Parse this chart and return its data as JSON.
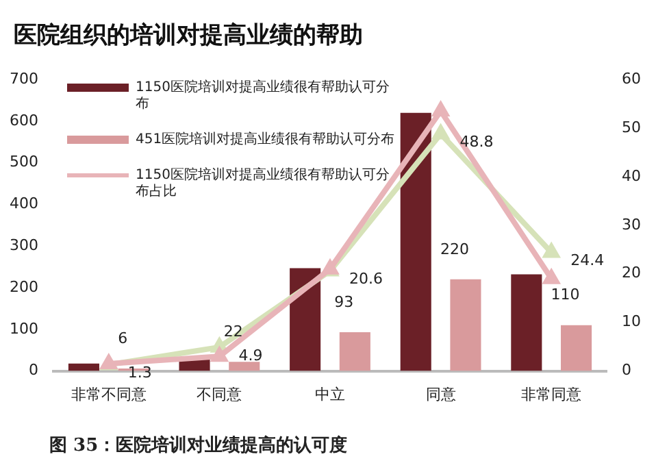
{
  "chart_data": {
    "type": "bar",
    "title": "医院组织的培训对提高业绩的帮助",
    "categories": [
      "非常不同意",
      "不同意",
      "中立",
      "同意",
      "非常同意"
    ],
    "series": [
      {
        "name": "1150医院培训对提高业绩很有帮助认可分布",
        "color": "#6b2027",
        "values": [
          18,
          33,
          247,
          620,
          232
        ]
      },
      {
        "name": "451医院培训对提高业绩很有帮助认可分布",
        "color": "#d99a9c",
        "values": [
          6,
          22,
          93,
          220,
          110
        ],
        "value_labels": [
          "6",
          "22",
          "93",
          "220",
          "110"
        ]
      },
      {
        "name": "1150医院培训对提高业绩很有帮助认可分布占比",
        "type": "line",
        "axis": "y2",
        "color": "#e8b4b8",
        "values": [
          1.5,
          3,
          21,
          53.5,
          19
        ]
      },
      {
        "type": "line",
        "axis": "y2",
        "color": "#d6e2b8",
        "values": [
          1.3,
          4.9,
          20.6,
          48.8,
          24.4
        ],
        "value_labels": [
          "1.3",
          "4.9",
          "20.6",
          "48.8",
          "24.4"
        ]
      }
    ],
    "ylim": [
      0,
      700
    ],
    "yticks": [
      0,
      100,
      200,
      300,
      400,
      500,
      600,
      700
    ],
    "y2lim": [
      0,
      60
    ],
    "y2ticks": [
      0,
      10,
      20,
      30,
      40,
      50,
      60
    ],
    "marker": "triangle",
    "grid": false,
    "legend": "top left",
    "annotations": [
      "图 35：医院培训对业绩提高的认可度"
    ]
  }
}
